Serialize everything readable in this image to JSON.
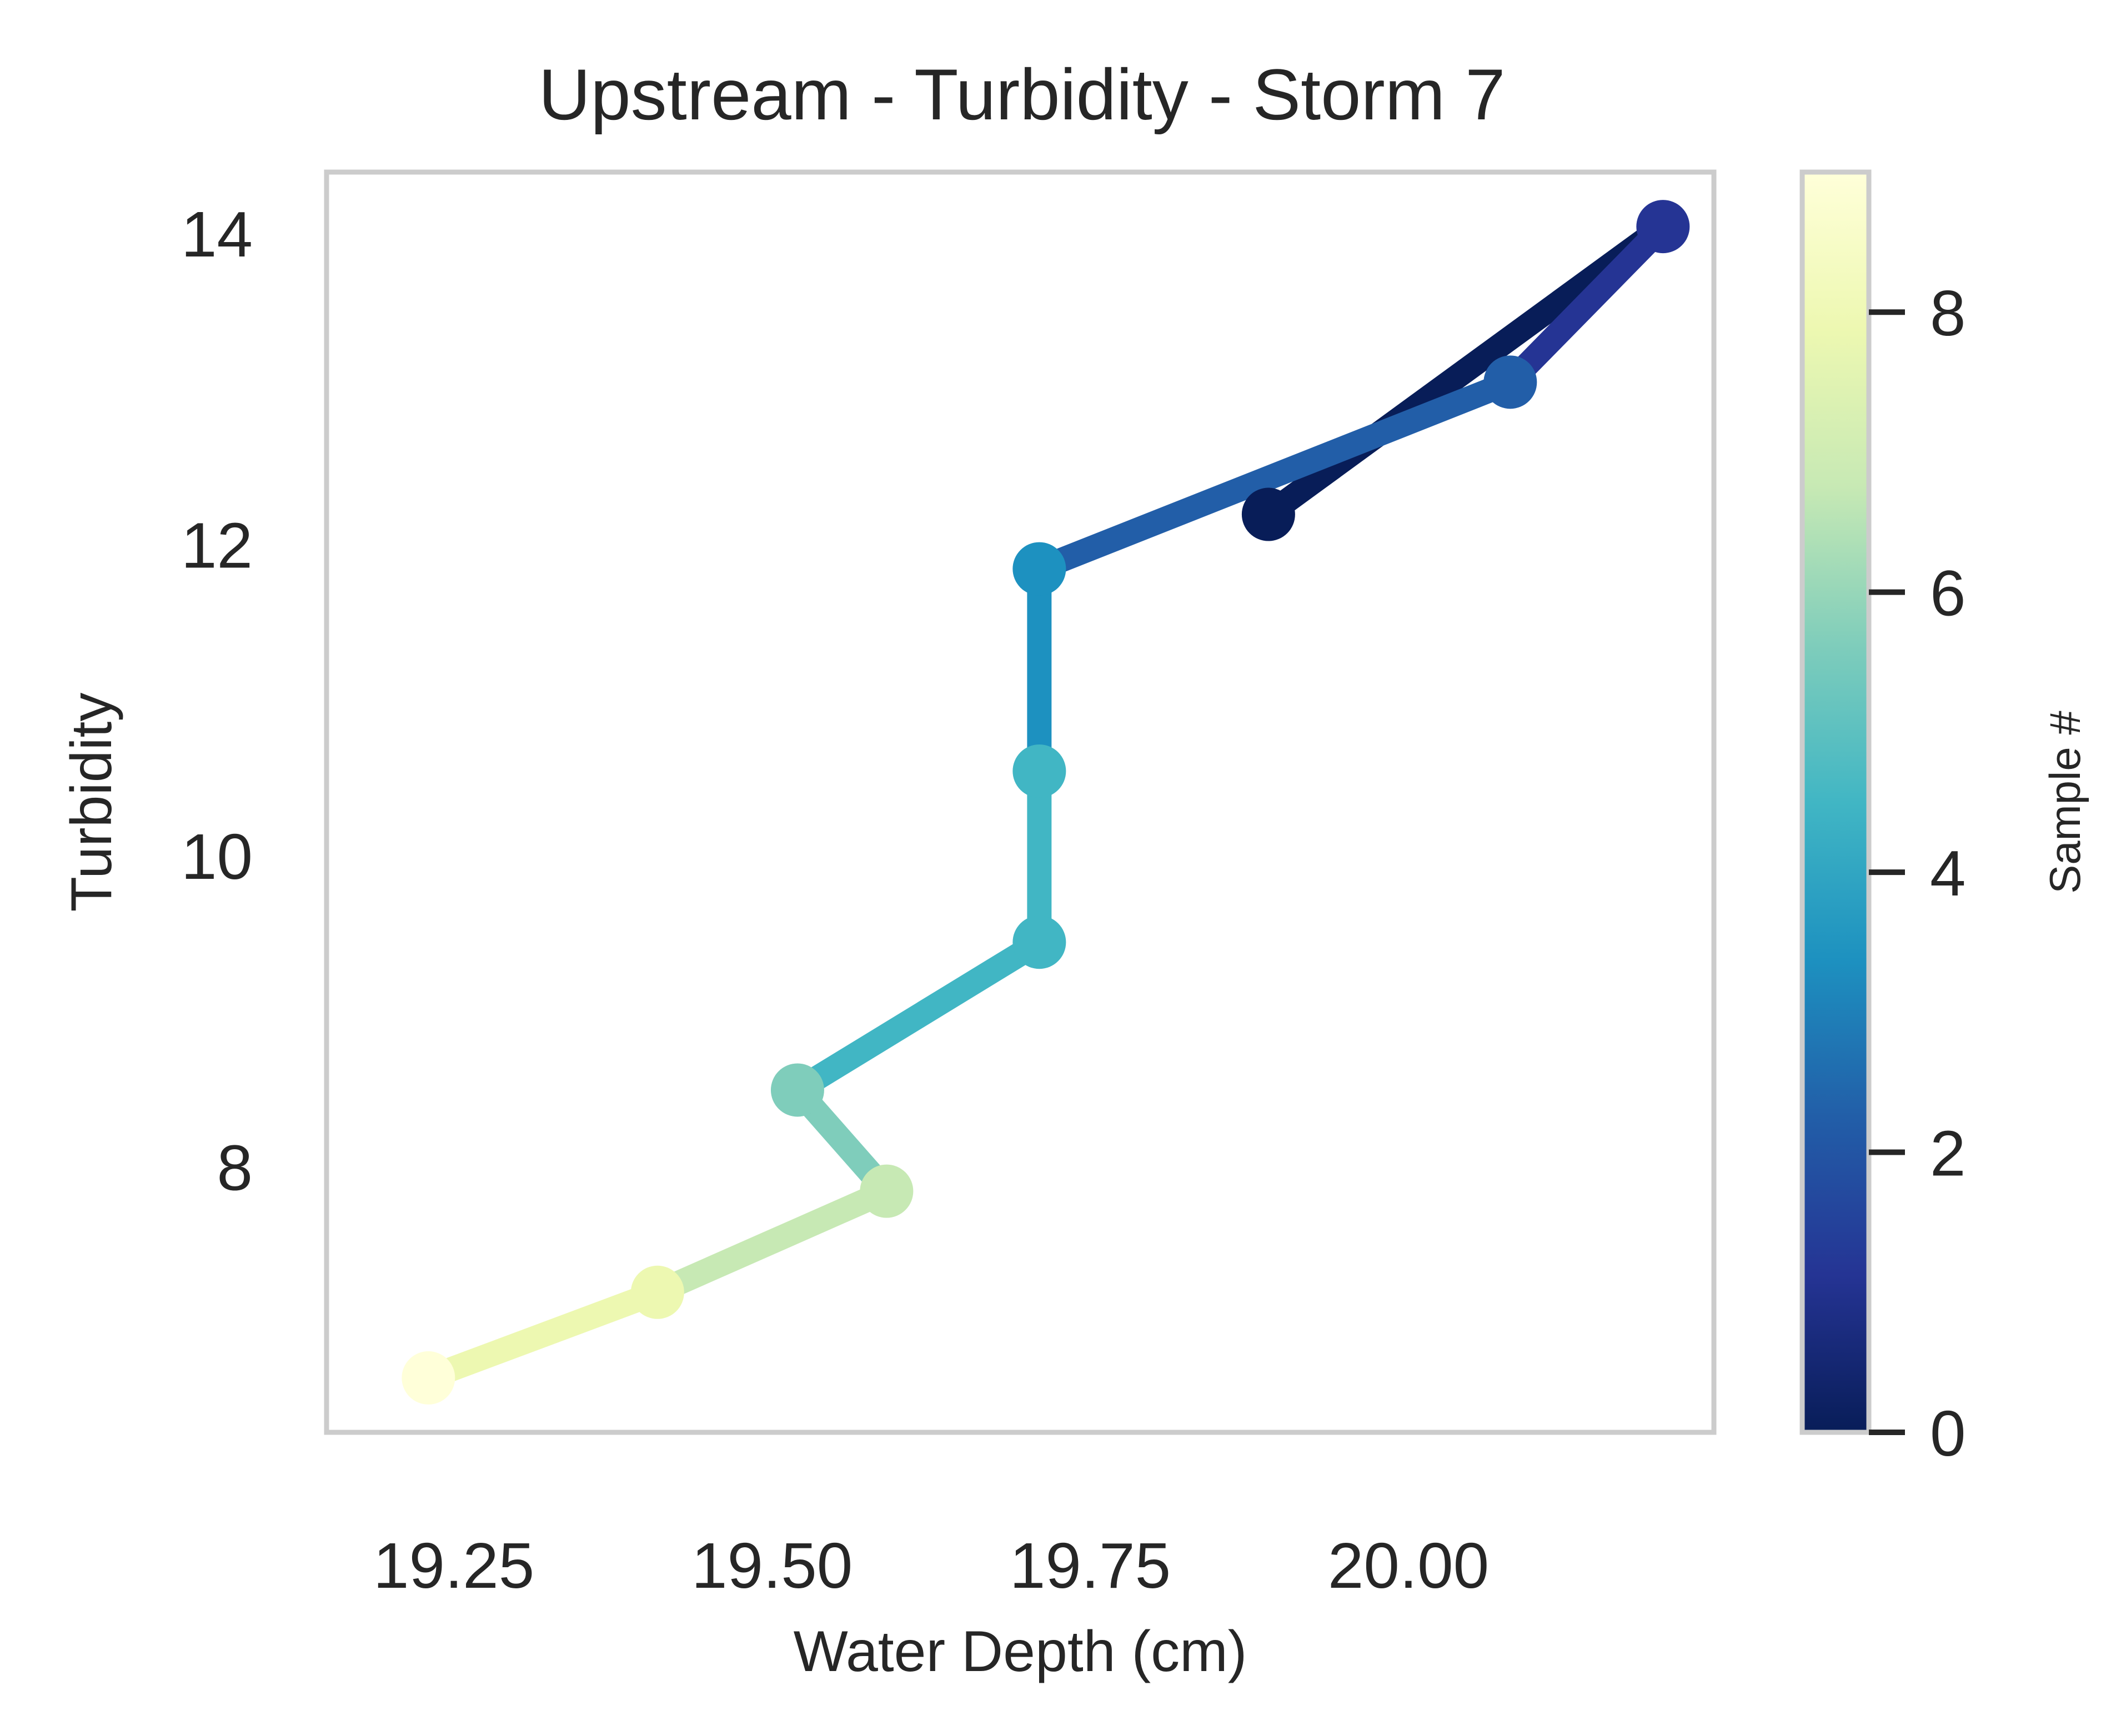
{
  "chart_data": {
    "type": "line",
    "title": "Upstream - Turbidity - Storm 7",
    "xlabel": "Water Depth (cm)",
    "ylabel": "Turbidity",
    "xlim": [
      19.15,
      20.24
    ],
    "ylim": [
      6.3,
      14.4
    ],
    "xticks": [
      "19.25",
      "19.50",
      "19.75",
      "20.00"
    ],
    "yticks": [
      "8",
      "10",
      "12",
      "14"
    ],
    "grid": false,
    "points": [
      {
        "sample": 0,
        "x": 19.89,
        "y": 12.2
      },
      {
        "sample": 1,
        "x": 20.2,
        "y": 14.05
      },
      {
        "sample": 2,
        "x": 20.08,
        "y": 13.05
      },
      {
        "sample": 3,
        "x": 19.71,
        "y": 11.85
      },
      {
        "sample": 4,
        "x": 19.71,
        "y": 10.55
      },
      {
        "sample": 5,
        "x": 19.71,
        "y": 9.45
      },
      {
        "sample": 6,
        "x": 19.52,
        "y": 8.5
      },
      {
        "sample": 7,
        "x": 19.59,
        "y": 7.85
      },
      {
        "sample": 8,
        "x": 19.41,
        "y": 7.2
      },
      {
        "sample": 9,
        "x": 19.23,
        "y": 6.65
      }
    ],
    "colorbar": {
      "label": "Sample #",
      "range": [
        0,
        9
      ],
      "ticks": [
        "0",
        "2",
        "4",
        "6",
        "8"
      ],
      "colormap": "YlGnBu_r",
      "colors": [
        "#081d58",
        "#253494",
        "#225ea8",
        "#1d91c0",
        "#41b6c4",
        "#7fcdbb",
        "#c7e9b4",
        "#edf8b1",
        "#ffffd9"
      ]
    }
  }
}
